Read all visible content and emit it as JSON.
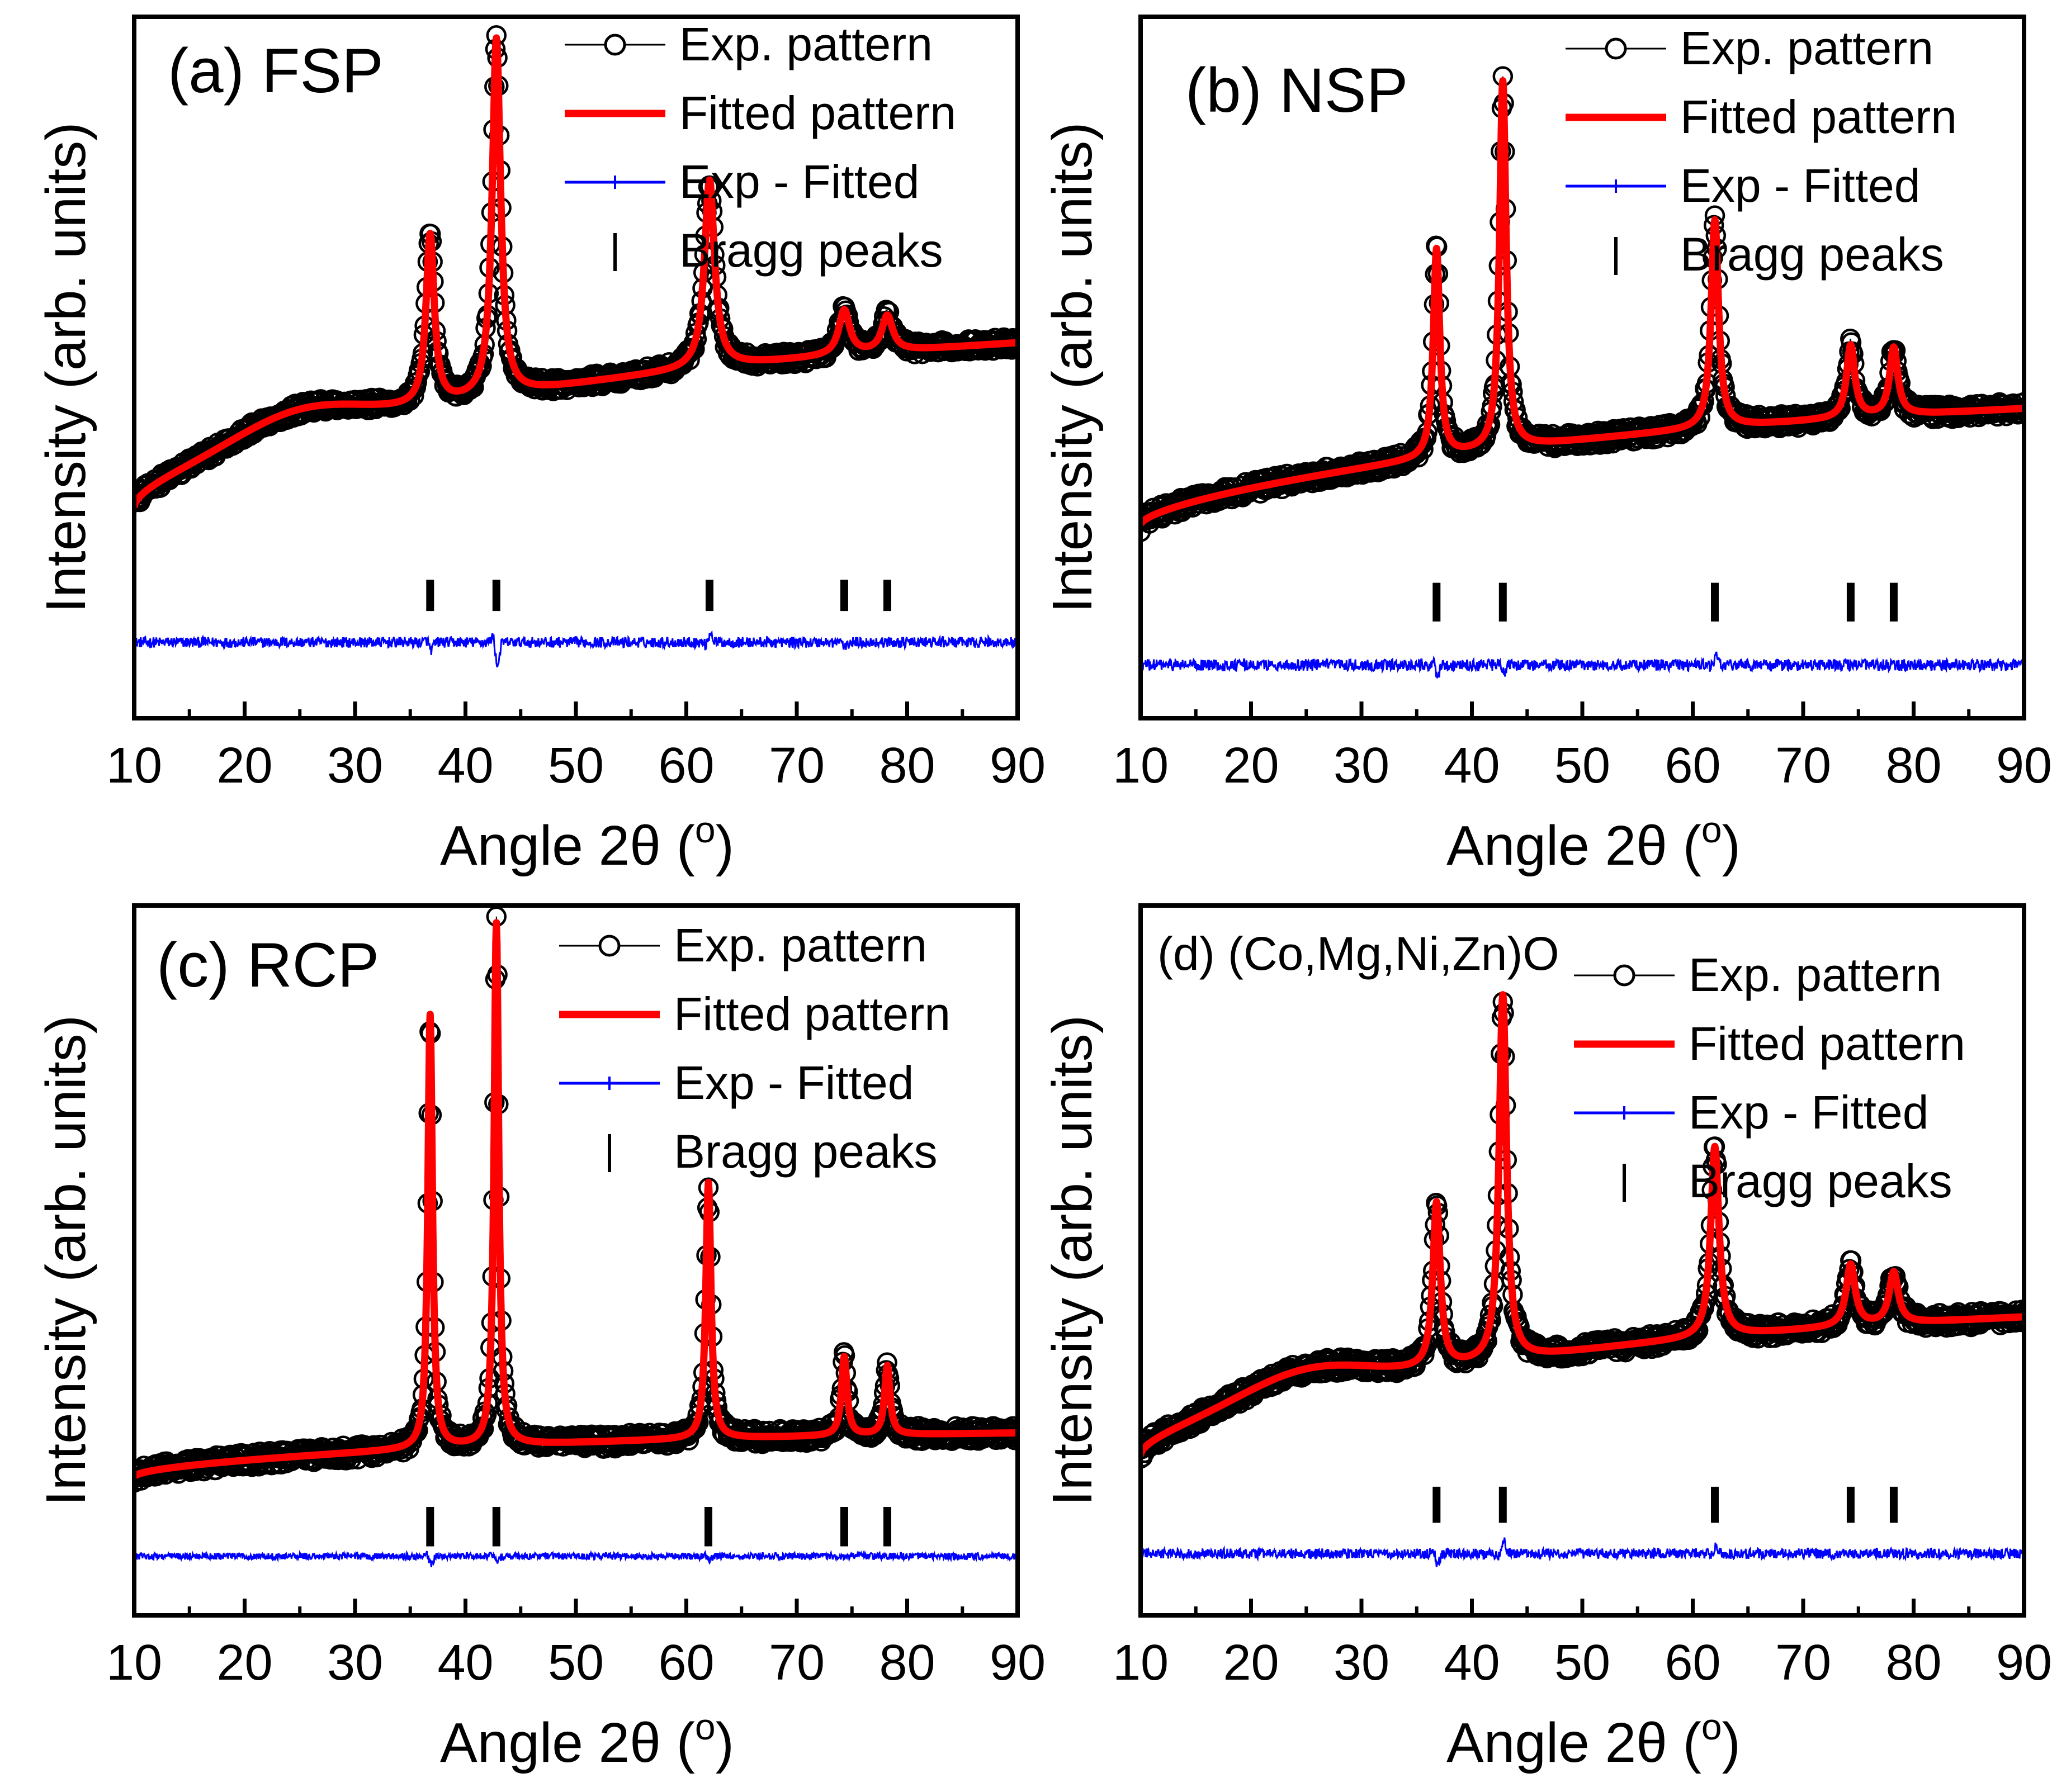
{
  "legend": {
    "exp": "Exp. pattern",
    "fit": "Fitted pattern",
    "diff": "Exp - Fitted",
    "bragg": "Bragg peaks"
  },
  "colors": {
    "exp": "#000000",
    "fit": "#ff0000",
    "diff": "#0000ff",
    "bragg": "#000000"
  },
  "chart_data": [
    {
      "type": "line",
      "title": "(a) FSP",
      "xlabel": "Angle 2θ (o)",
      "ylabel": "Intensity (arb. units)",
      "xlim": [
        10,
        90
      ],
      "ylim": [
        -0.27,
        1.3
      ],
      "xticks": [
        10,
        20,
        30,
        40,
        50,
        60,
        70,
        80,
        90
      ],
      "yticks": [],
      "grid": false,
      "legend_position": "top-right",
      "background": {
        "y0": 0.2,
        "y1": 0.57,
        "p": 0.55,
        "k": 0.12,
        "hump": 0.06
      },
      "peaks": [
        {
          "x": 36.8,
          "height": 0.38,
          "width": 0.45
        },
        {
          "x": 42.8,
          "height": 0.8,
          "width": 0.45
        },
        {
          "x": 62.1,
          "height": 0.42,
          "width": 0.55
        },
        {
          "x": 74.3,
          "height": 0.1,
          "width": 0.6
        },
        {
          "x": 78.2,
          "height": 0.08,
          "width": 0.6
        }
      ],
      "bragg_peaks": [
        36.8,
        42.8,
        62.1,
        74.3,
        78.2
      ],
      "bragg_y": [
        -0.03,
        0.04
      ],
      "diff_baseline": -0.1,
      "diff_noise": 0.012,
      "diff_features": [
        {
          "x": 36.8,
          "a": -0.02
        },
        {
          "x": 42.8,
          "a": -0.06
        },
        {
          "x": 62.1,
          "a": 0.025
        },
        {
          "x": 74.3,
          "a": -0.015
        }
      ]
    },
    {
      "type": "line",
      "title": "(b) NSP",
      "xlabel": "Angle 2θ (o)",
      "ylabel": "Intensity (arb. units)",
      "xlim": [
        10,
        90
      ],
      "ylim": [
        -0.25,
        1.2
      ],
      "xticks": [
        10,
        20,
        30,
        40,
        50,
        60,
        70,
        80,
        90
      ],
      "yticks": [],
      "grid": false,
      "legend_position": "top-right",
      "background": {
        "y0": 0.15,
        "y1": 0.39,
        "p": 0.6,
        "k": 0.08,
        "hump": 0.0
      },
      "peaks": [
        {
          "x": 36.8,
          "height": 0.43,
          "width": 0.35
        },
        {
          "x": 42.8,
          "height": 0.76,
          "width": 0.35
        },
        {
          "x": 62.0,
          "height": 0.43,
          "width": 0.4
        },
        {
          "x": 74.3,
          "height": 0.15,
          "width": 0.45
        },
        {
          "x": 78.2,
          "height": 0.14,
          "width": 0.45
        }
      ],
      "bragg_peaks": [
        36.8,
        42.8,
        62.0,
        74.3,
        78.2
      ],
      "bragg_y": [
        -0.05,
        0.03
      ],
      "diff_baseline": -0.14,
      "diff_noise": 0.012,
      "diff_features": [
        {
          "x": 36.8,
          "a": -0.03
        },
        {
          "x": 42.8,
          "a": -0.02
        },
        {
          "x": 62.0,
          "a": 0.02
        }
      ]
    },
    {
      "type": "line",
      "title": "(c) RCP",
      "xlabel": "Angle 2θ (o)",
      "ylabel": "Intensity (arb. units)",
      "xlim": [
        10,
        90
      ],
      "ylim": [
        -0.14,
        1.3
      ],
      "xticks": [
        10,
        20,
        30,
        40,
        50,
        60,
        70,
        80,
        90
      ],
      "yticks": [],
      "grid": false,
      "legend_position": "top-right",
      "background": {
        "y0": 0.14,
        "y1": 0.23,
        "p": 0.5,
        "k": 0.03,
        "hump": 0.0
      },
      "peaks": [
        {
          "x": 36.8,
          "height": 0.88,
          "width": 0.25
        },
        {
          "x": 42.8,
          "height": 1.06,
          "width": 0.25
        },
        {
          "x": 62.0,
          "height": 0.52,
          "width": 0.28
        },
        {
          "x": 74.3,
          "height": 0.16,
          "width": 0.3
        },
        {
          "x": 78.2,
          "height": 0.14,
          "width": 0.3
        }
      ],
      "bragg_peaks": [
        36.8,
        42.8,
        62.0,
        74.3,
        78.2
      ],
      "bragg_y": [
        0.0,
        0.08
      ],
      "diff_baseline": -0.02,
      "diff_noise": 0.007,
      "diff_features": [
        {
          "x": 36.8,
          "a": -0.02
        },
        {
          "x": 42.8,
          "a": -0.015
        },
        {
          "x": 62.0,
          "a": -0.01
        }
      ]
    },
    {
      "type": "line",
      "title": "(d) (Co,Mg,Ni,Zn)O",
      "xlabel": "Angle 2θ (o)",
      "ylabel": "Intensity (arb. units)",
      "xlim": [
        10,
        90
      ],
      "ylim": [
        -0.08,
        1.3
      ],
      "xticks": [
        10,
        20,
        30,
        40,
        50,
        60,
        70,
        80,
        90
      ],
      "yticks": [],
      "grid": false,
      "legend_position": "top-right",
      "background": {
        "y0": 0.23,
        "y1": 0.5,
        "p": 0.55,
        "k": 0.1,
        "hump": 0.05
      },
      "peaks": [
        {
          "x": 36.8,
          "height": 0.32,
          "width": 0.4
        },
        {
          "x": 42.8,
          "height": 0.71,
          "width": 0.4
        },
        {
          "x": 62.0,
          "height": 0.37,
          "width": 0.45
        },
        {
          "x": 74.3,
          "height": 0.12,
          "width": 0.5
        },
        {
          "x": 78.2,
          "height": 0.1,
          "width": 0.5
        }
      ],
      "bragg_peaks": [
        36.8,
        42.8,
        62.0,
        74.3,
        78.2
      ],
      "bragg_y": [
        0.1,
        0.17
      ],
      "diff_baseline": 0.04,
      "diff_noise": 0.01,
      "diff_features": [
        {
          "x": 36.8,
          "a": -0.025
        },
        {
          "x": 42.8,
          "a": 0.03
        },
        {
          "x": 62.0,
          "a": 0.015
        }
      ]
    }
  ]
}
